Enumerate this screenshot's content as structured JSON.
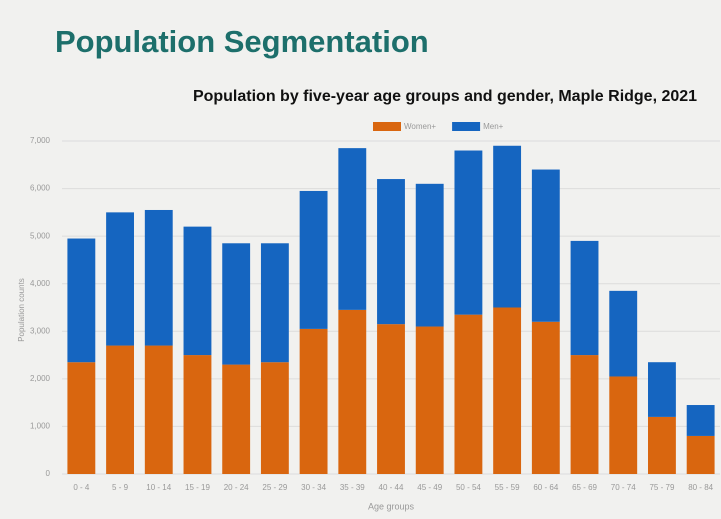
{
  "slide_title": "Population Segmentation",
  "chart_data": {
    "type": "stacked_bar",
    "title": "Population by five-year age groups and gender, Maple Ridge, 2021",
    "x_label": "Age groups",
    "y_label": "Population counts",
    "categories": [
      "0 - 4",
      "5 - 9",
      "10 - 14",
      "15 - 19",
      "20 - 24",
      "25 - 29",
      "30 - 34",
      "35 - 39",
      "40 - 44",
      "45 - 49",
      "50 - 54",
      "55 - 59",
      "60 - 64",
      "65 - 69",
      "70 - 74",
      "75 - 79",
      "80 - 84"
    ],
    "series": [
      {
        "name": "Women+",
        "color": "#d9660f",
        "values": [
          2350,
          2700,
          2700,
          2500,
          2300,
          2350,
          3050,
          3450,
          3150,
          3100,
          3350,
          3500,
          3200,
          2500,
          2050,
          1200,
          800
        ]
      },
      {
        "name": "Men+",
        "color": "#1565c0",
        "values": [
          2600,
          2800,
          2850,
          2700,
          2550,
          2500,
          2900,
          3400,
          3050,
          3000,
          3450,
          3400,
          3200,
          2400,
          1800,
          1150,
          650
        ]
      }
    ],
    "ylim": [
      0,
      7000
    ],
    "yticks": [
      0,
      {
        "value": 1000,
        "label": "1,000"
      },
      {
        "value": 2000,
        "label": "2,000"
      },
      {
        "value": 3000,
        "label": "3,000"
      },
      {
        "value": 4000,
        "label": "4,000"
      },
      {
        "value": 5000,
        "label": "5,000"
      },
      {
        "value": 6000,
        "label": "6,000"
      },
      {
        "value": 7000,
        "label": "7,000"
      }
    ],
    "grid": true,
    "legend": "top"
  }
}
